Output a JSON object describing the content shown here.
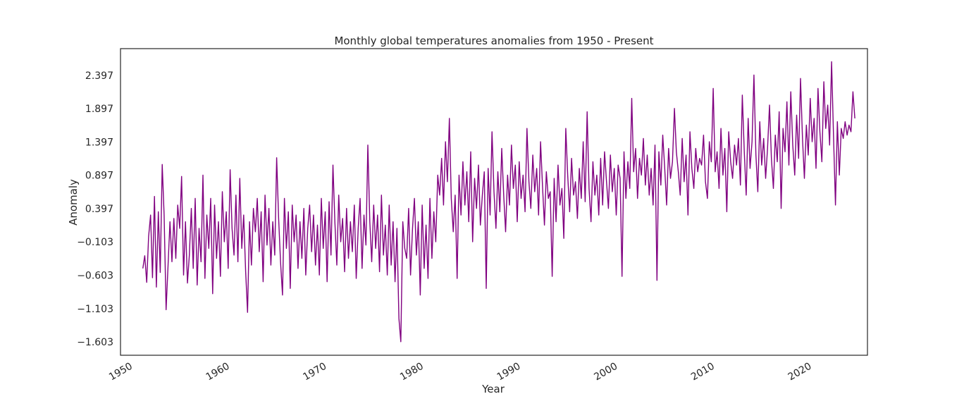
{
  "chart_data": {
    "type": "line",
    "title": "Monthly global temperatures anomalies from 1950 - Present",
    "xlabel": "Year",
    "ylabel": "Anomaly",
    "xlim": [
      1948.7,
      2025.7
    ],
    "ylim": [
      -1.803,
      2.797
    ],
    "x_ticks": [
      "1950",
      "1960",
      "1970",
      "1980",
      "1990",
      "2000",
      "2010",
      "2020"
    ],
    "y_ticks": [
      "-1.603",
      "-1.103",
      "-0.603",
      "-0.103",
      "0.397",
      "0.897",
      "1.397",
      "1.897",
      "2.397"
    ],
    "grid": false,
    "line_color": "#800080",
    "series": [
      {
        "x_start": 1951.0,
        "x_step_per_point": 0.2,
        "values": [
          -0.5,
          -0.31,
          -0.71,
          -0.02,
          0.3,
          -0.64,
          0.58,
          -0.78,
          0.35,
          -0.56,
          1.06,
          0.3,
          -1.12,
          -0.45,
          0.2,
          -0.4,
          0.25,
          -0.35,
          0.45,
          0.1,
          0.88,
          -0.6,
          0.2,
          -0.72,
          -0.3,
          0.4,
          -0.5,
          0.55,
          -0.75,
          0.1,
          -0.4,
          0.9,
          -0.65,
          0.3,
          -0.2,
          0.55,
          -0.88,
          0.45,
          -0.35,
          0.2,
          -0.62,
          0.65,
          -0.1,
          0.35,
          -0.5,
          0.98,
          0.1,
          -0.3,
          0.6,
          -0.4,
          0.85,
          -0.2,
          0.3,
          -0.55,
          -1.16,
          0.2,
          -0.45,
          0.4,
          0.05,
          0.55,
          -0.25,
          0.35,
          -0.7,
          0.6,
          -0.15,
          0.4,
          -0.45,
          0.2,
          -0.3,
          1.16,
          0.25,
          -0.4,
          -0.9,
          0.55,
          -0.2,
          0.35,
          -0.8,
          0.45,
          -0.1,
          0.3,
          -0.5,
          0.2,
          -0.35,
          0.4,
          -0.6,
          0.1,
          0.45,
          -0.25,
          0.3,
          -0.45,
          0.15,
          -0.6,
          0.55,
          -0.2,
          0.35,
          -0.7,
          0.5,
          -0.3,
          1.05,
          0.2,
          -0.45,
          0.6,
          -0.1,
          0.25,
          -0.55,
          0.4,
          -0.35,
          0.2,
          -0.25,
          0.45,
          -0.65,
          0.1,
          0.55,
          -0.5,
          0.3,
          -0.15,
          1.35,
          0.2,
          -0.4,
          0.45,
          -0.2,
          0.3,
          -0.55,
          0.6,
          -0.3,
          0.15,
          -0.6,
          0.45,
          -0.45,
          0.2,
          -0.7,
          0.1,
          -1.25,
          -1.6,
          0.2,
          -0.2,
          -0.35,
          0.4,
          -0.6,
          0.1,
          0.55,
          -0.3,
          0.2,
          -0.9,
          0.45,
          -0.5,
          0.15,
          -0.65,
          0.55,
          -0.35,
          0.35,
          -0.1,
          0.9,
          0.6,
          1.15,
          0.45,
          1.4,
          0.8,
          1.75,
          0.55,
          0.05,
          0.6,
          -0.65,
          0.9,
          0.3,
          1.1,
          0.45,
          0.95,
          0.2,
          1.25,
          -0.1,
          0.85,
          0.4,
          1.05,
          0.15,
          0.6,
          0.95,
          -0.8,
          1.0,
          0.3,
          1.55,
          0.65,
          0.1,
          0.95,
          0.35,
          1.3,
          0.6,
          0.05,
          0.9,
          0.45,
          1.35,
          0.7,
          1.05,
          0.2,
          1.1,
          0.55,
          0.9,
          0.35,
          1.6,
          0.8,
          0.4,
          1.2,
          0.65,
          1.0,
          0.3,
          1.4,
          0.75,
          0.15,
          0.95,
          0.55,
          0.65,
          -0.62,
          0.85,
          0.2,
          1.05,
          0.45,
          0.7,
          -0.05,
          1.6,
          0.9,
          0.35,
          1.15,
          0.6,
          0.8,
          0.25,
          1.0,
          0.55,
          1.4,
          0.5,
          1.85,
          0.7,
          0.2,
          1.1,
          0.6,
          0.9,
          0.3,
          1.15,
          0.45,
          1.25,
          0.8,
          0.4,
          1.2,
          0.65,
          1.0,
          0.3,
          1.05,
          0.85,
          -0.62,
          1.25,
          0.55,
          1.1,
          0.7,
          2.05,
          0.95,
          1.3,
          0.55,
          1.15,
          0.9,
          1.45,
          0.75,
          1.2,
          0.6,
          1.0,
          0.45,
          1.35,
          -0.68,
          1.25,
          0.75,
          1.5,
          1.0,
          0.45,
          1.3,
          0.85,
          1.1,
          1.9,
          1.25,
          0.95,
          0.6,
          1.45,
          0.8,
          1.2,
          0.3,
          1.55,
          1.0,
          0.7,
          1.3,
          0.95,
          1.15,
          1.05,
          1.5,
          0.8,
          0.55,
          1.4,
          1.1,
          2.2,
          0.95,
          1.25,
          0.7,
          1.6,
          0.9,
          1.3,
          0.35,
          1.55,
          1.1,
          0.85,
          1.35,
          1.05,
          1.45,
          0.75,
          2.1,
          1.25,
          0.6,
          1.75,
          1.0,
          1.4,
          2.4,
          1.2,
          0.65,
          1.7,
          1.05,
          1.45,
          0.85,
          1.3,
          1.95,
          1.15,
          0.7,
          1.5,
          1.1,
          1.85,
          0.4,
          1.6,
          1.25,
          2.0,
          1.05,
          2.15,
          1.35,
          0.9,
          1.8,
          1.15,
          2.35,
          1.45,
          0.85,
          1.65,
          1.2,
          2.05,
          1.4,
          1.75,
          1.0,
          2.2,
          1.55,
          1.1,
          2.3,
          1.6,
          1.95,
          1.35,
          2.6,
          1.5,
          0.45,
          1.7,
          0.9,
          1.6,
          1.45,
          1.7,
          1.5,
          1.65,
          1.55,
          2.15,
          1.75
        ]
      }
    ]
  }
}
